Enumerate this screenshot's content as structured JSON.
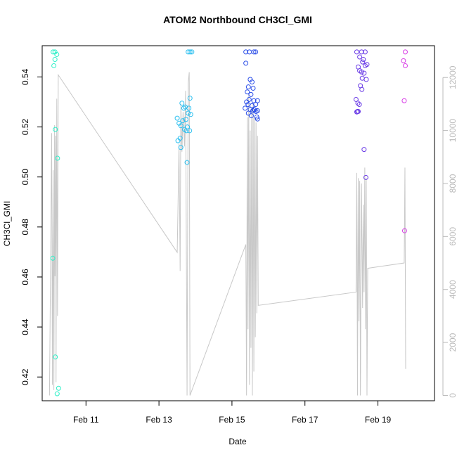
{
  "chart_data": {
    "type": "scatter",
    "title": "ATOM2 Northbound CH3Cl_GMI",
    "xlabel": "Date",
    "ylabel": "CH3Cl_GMI",
    "xlim": [
      9.8,
      20.55
    ],
    "ylim": [
      0.4105,
      0.5525
    ],
    "y2lim": [
      -200,
      13200
    ],
    "x_ticks": [
      {
        "value": 11,
        "label": "Feb 11"
      },
      {
        "value": 13,
        "label": "Feb 13"
      },
      {
        "value": 15,
        "label": "Feb 15"
      },
      {
        "value": 17,
        "label": "Feb 17"
      },
      {
        "value": 19,
        "label": "Feb 19"
      }
    ],
    "y_ticks": [
      0.42,
      0.44,
      0.46,
      0.48,
      0.5,
      0.52,
      0.54
    ],
    "y2_ticks": [
      0,
      2000,
      4000,
      6000,
      8000,
      10000,
      12000
    ],
    "grid": false,
    "colors": {
      "altitude_line": "#c8c8c8",
      "axis": "#000000",
      "right_axis": "#bbbbbb"
    },
    "points": [
      {
        "x": 10.1,
        "y": 0.55,
        "color": "#2ef0c8"
      },
      {
        "x": 10.15,
        "y": 0.55,
        "color": "#2ef0c8"
      },
      {
        "x": 10.2,
        "y": 0.549,
        "color": "#2ef0c8"
      },
      {
        "x": 10.15,
        "y": 0.547,
        "color": "#2ef0c8"
      },
      {
        "x": 10.12,
        "y": 0.5445,
        "color": "#2ef0c8"
      },
      {
        "x": 10.16,
        "y": 0.519,
        "color": "#2ef0c8"
      },
      {
        "x": 10.22,
        "y": 0.5075,
        "color": "#2ef0c8"
      },
      {
        "x": 10.09,
        "y": 0.4675,
        "color": "#2ef0c8"
      },
      {
        "x": 10.16,
        "y": 0.428,
        "color": "#2ef0c8"
      },
      {
        "x": 10.25,
        "y": 0.4155,
        "color": "#2ef0c8"
      },
      {
        "x": 10.21,
        "y": 0.4133,
        "color": "#2ef0c8"
      },
      {
        "x": 13.5,
        "y": 0.5235,
        "color": "#29bff0"
      },
      {
        "x": 13.55,
        "y": 0.5215,
        "color": "#29bff0"
      },
      {
        "x": 13.6,
        "y": 0.5205,
        "color": "#29bff0"
      },
      {
        "x": 13.65,
        "y": 0.5225,
        "color": "#29bff0"
      },
      {
        "x": 13.52,
        "y": 0.5145,
        "color": "#29bff0"
      },
      {
        "x": 13.58,
        "y": 0.5155,
        "color": "#29bff0"
      },
      {
        "x": 13.6,
        "y": 0.5118,
        "color": "#29bff0"
      },
      {
        "x": 13.68,
        "y": 0.5275,
        "color": "#29bff0"
      },
      {
        "x": 13.63,
        "y": 0.5295,
        "color": "#29bff0"
      },
      {
        "x": 13.72,
        "y": 0.528,
        "color": "#29bff0"
      },
      {
        "x": 13.7,
        "y": 0.519,
        "color": "#29bff0"
      },
      {
        "x": 13.75,
        "y": 0.5185,
        "color": "#29bff0"
      },
      {
        "x": 13.78,
        "y": 0.52,
        "color": "#29bff0"
      },
      {
        "x": 13.8,
        "y": 0.5255,
        "color": "#29bff0"
      },
      {
        "x": 13.82,
        "y": 0.5275,
        "color": "#29bff0"
      },
      {
        "x": 13.74,
        "y": 0.523,
        "color": "#29bff0"
      },
      {
        "x": 13.85,
        "y": 0.5315,
        "color": "#29bff0"
      },
      {
        "x": 13.87,
        "y": 0.525,
        "color": "#29bff0"
      },
      {
        "x": 13.84,
        "y": 0.5185,
        "color": "#29bff0"
      },
      {
        "x": 13.77,
        "y": 0.5058,
        "color": "#29bff0"
      },
      {
        "x": 13.8,
        "y": 0.55,
        "color": "#29bff0"
      },
      {
        "x": 13.85,
        "y": 0.55,
        "color": "#29bff0"
      },
      {
        "x": 13.9,
        "y": 0.55,
        "color": "#29bff0"
      },
      {
        "x": 15.38,
        "y": 0.55,
        "color": "#2a4de8"
      },
      {
        "x": 15.48,
        "y": 0.55,
        "color": "#2a4de8"
      },
      {
        "x": 15.6,
        "y": 0.55,
        "color": "#2a4de8"
      },
      {
        "x": 15.65,
        "y": 0.55,
        "color": "#2a4de8"
      },
      {
        "x": 15.38,
        "y": 0.5455,
        "color": "#2a4de8"
      },
      {
        "x": 15.5,
        "y": 0.539,
        "color": "#2a4de8"
      },
      {
        "x": 15.55,
        "y": 0.538,
        "color": "#2a4de8"
      },
      {
        "x": 15.45,
        "y": 0.536,
        "color": "#2a4de8"
      },
      {
        "x": 15.58,
        "y": 0.5355,
        "color": "#2a4de8"
      },
      {
        "x": 15.42,
        "y": 0.534,
        "color": "#2a4de8"
      },
      {
        "x": 15.52,
        "y": 0.533,
        "color": "#2a4de8"
      },
      {
        "x": 15.47,
        "y": 0.531,
        "color": "#2a4de8"
      },
      {
        "x": 15.6,
        "y": 0.5305,
        "color": "#2a4de8"
      },
      {
        "x": 15.4,
        "y": 0.53,
        "color": "#2a4de8"
      },
      {
        "x": 15.44,
        "y": 0.529,
        "color": "#2a4de8"
      },
      {
        "x": 15.55,
        "y": 0.5285,
        "color": "#2a4de8"
      },
      {
        "x": 15.65,
        "y": 0.529,
        "color": "#2a4de8"
      },
      {
        "x": 15.7,
        "y": 0.5305,
        "color": "#2a4de8"
      },
      {
        "x": 15.36,
        "y": 0.5275,
        "color": "#2a4de8"
      },
      {
        "x": 15.5,
        "y": 0.527,
        "color": "#2a4de8"
      },
      {
        "x": 15.57,
        "y": 0.5265,
        "color": "#2a4de8"
      },
      {
        "x": 15.62,
        "y": 0.5268,
        "color": "#2a4de8"
      },
      {
        "x": 15.66,
        "y": 0.5262,
        "color": "#2a4de8"
      },
      {
        "x": 15.7,
        "y": 0.5265,
        "color": "#2a4de8"
      },
      {
        "x": 15.6,
        "y": 0.527,
        "color": "#2a4de8"
      },
      {
        "x": 15.53,
        "y": 0.5245,
        "color": "#2a4de8"
      },
      {
        "x": 15.68,
        "y": 0.524,
        "color": "#2a4de8"
      },
      {
        "x": 15.7,
        "y": 0.5232,
        "color": "#2a4de8"
      },
      {
        "x": 15.45,
        "y": 0.5255,
        "color": "#2a4de8"
      },
      {
        "x": 18.42,
        "y": 0.55,
        "color": "#6a3be6"
      },
      {
        "x": 18.55,
        "y": 0.55,
        "color": "#6a3be6"
      },
      {
        "x": 18.65,
        "y": 0.55,
        "color": "#6a3be6"
      },
      {
        "x": 18.5,
        "y": 0.548,
        "color": "#6a3be6"
      },
      {
        "x": 18.6,
        "y": 0.547,
        "color": "#6a3be6"
      },
      {
        "x": 18.58,
        "y": 0.546,
        "color": "#6a3be6"
      },
      {
        "x": 18.46,
        "y": 0.544,
        "color": "#6a3be6"
      },
      {
        "x": 18.65,
        "y": 0.5445,
        "color": "#6a3be6"
      },
      {
        "x": 18.7,
        "y": 0.545,
        "color": "#6a3be6"
      },
      {
        "x": 18.5,
        "y": 0.5425,
        "color": "#6a3be6"
      },
      {
        "x": 18.55,
        "y": 0.542,
        "color": "#6a3be6"
      },
      {
        "x": 18.62,
        "y": 0.5415,
        "color": "#6a3be6"
      },
      {
        "x": 18.57,
        "y": 0.5395,
        "color": "#6a3be6"
      },
      {
        "x": 18.68,
        "y": 0.539,
        "color": "#6a3be6"
      },
      {
        "x": 18.52,
        "y": 0.5365,
        "color": "#6a3be6"
      },
      {
        "x": 18.56,
        "y": 0.535,
        "color": "#6a3be6"
      },
      {
        "x": 18.4,
        "y": 0.531,
        "color": "#6a3be6"
      },
      {
        "x": 18.45,
        "y": 0.5295,
        "color": "#6a3be6"
      },
      {
        "x": 18.49,
        "y": 0.529,
        "color": "#6a3be6"
      },
      {
        "x": 18.44,
        "y": 0.5262,
        "color": "#6a3be6"
      },
      {
        "x": 18.42,
        "y": 0.526,
        "color": "#6a3be6"
      },
      {
        "x": 18.46,
        "y": 0.5262,
        "color": "#6a3be6"
      },
      {
        "x": 18.62,
        "y": 0.511,
        "color": "#6a3be6"
      },
      {
        "x": 18.67,
        "y": 0.4998,
        "color": "#6a3be6"
      },
      {
        "x": 19.75,
        "y": 0.55,
        "color": "#d83ee6"
      },
      {
        "x": 19.7,
        "y": 0.5465,
        "color": "#d83ee6"
      },
      {
        "x": 19.75,
        "y": 0.5445,
        "color": "#d83ee6"
      },
      {
        "x": 19.72,
        "y": 0.5305,
        "color": "#d83ee6"
      },
      {
        "x": 19.73,
        "y": 0.4785,
        "color": "#d83ee6"
      }
    ],
    "altitude": [
      [
        10.0,
        0
      ],
      [
        10.06,
        9900
      ],
      [
        10.08,
        400
      ],
      [
        10.1,
        8500
      ],
      [
        10.12,
        200
      ],
      [
        10.14,
        10200
      ],
      [
        10.15,
        4500
      ],
      [
        10.17,
        9800
      ],
      [
        10.18,
        500
      ],
      [
        10.2,
        11200
      ],
      [
        10.22,
        3000
      ],
      [
        10.24,
        12100
      ],
      [
        13.5,
        5400
      ],
      [
        13.55,
        9500
      ],
      [
        13.58,
        4700
      ],
      [
        13.6,
        11000
      ],
      [
        13.63,
        9200
      ],
      [
        13.66,
        10700
      ],
      [
        13.7,
        9400
      ],
      [
        13.73,
        11500
      ],
      [
        13.77,
        0
      ],
      [
        13.8,
        11800
      ],
      [
        13.83,
        12200
      ],
      [
        13.85,
        0
      ],
      [
        15.38,
        5700
      ],
      [
        15.4,
        0
      ],
      [
        15.42,
        10500
      ],
      [
        15.44,
        2500
      ],
      [
        15.46,
        11400
      ],
      [
        15.48,
        400
      ],
      [
        15.5,
        10000
      ],
      [
        15.52,
        1800
      ],
      [
        15.54,
        10800
      ],
      [
        15.56,
        0
      ],
      [
        15.58,
        11000
      ],
      [
        15.6,
        900
      ],
      [
        15.62,
        10500
      ],
      [
        15.64,
        2200
      ],
      [
        15.66,
        10300
      ],
      [
        15.68,
        3100
      ],
      [
        15.7,
        9800
      ],
      [
        15.72,
        3400
      ],
      [
        18.4,
        3900
      ],
      [
        18.42,
        8400
      ],
      [
        18.44,
        0
      ],
      [
        18.46,
        8200
      ],
      [
        18.48,
        2800
      ],
      [
        18.5,
        8100
      ],
      [
        18.52,
        0
      ],
      [
        18.55,
        8000
      ],
      [
        18.58,
        3300
      ],
      [
        18.6,
        7200
      ],
      [
        18.62,
        3900
      ],
      [
        18.64,
        8600
      ],
      [
        18.66,
        2500
      ],
      [
        18.68,
        8200
      ],
      [
        18.7,
        0
      ],
      [
        18.72,
        4800
      ],
      [
        19.72,
        5000
      ],
      [
        19.74,
        8600
      ],
      [
        19.76,
        1000
      ]
    ]
  }
}
